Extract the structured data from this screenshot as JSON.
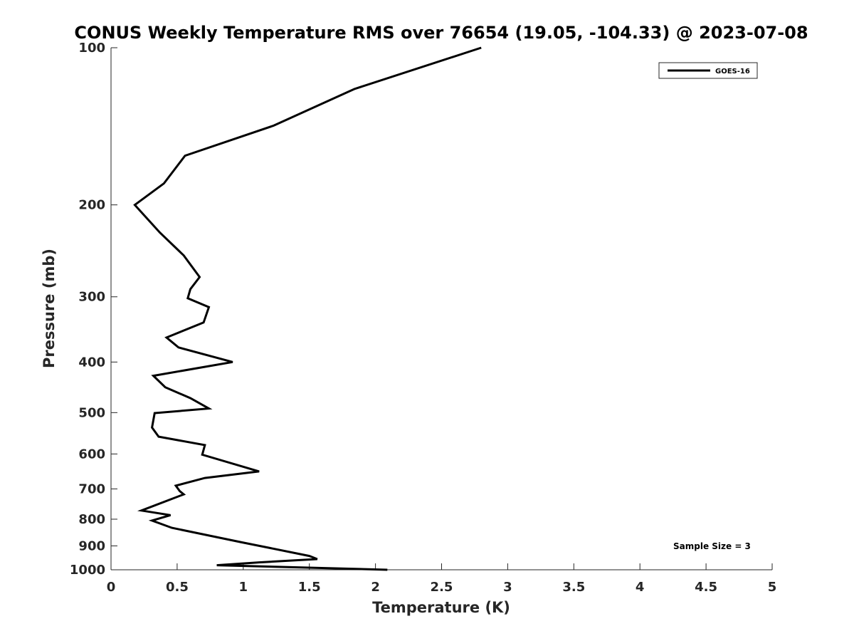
{
  "chart_data": {
    "type": "line",
    "title": "CONUS Weekly Temperature RMS over 76654 (19.05, -104.33) @ 2023-07-08",
    "xlabel": "Temperature (K)",
    "ylabel": "Pressure (mb)",
    "xlim": [
      0,
      5
    ],
    "ylim": [
      100,
      1000
    ],
    "y_scale": "log",
    "y_reversed": true,
    "grid": false,
    "legend_position": "top-right",
    "x_ticks": [
      "0",
      "0.5",
      "1",
      "1.5",
      "2",
      "2.5",
      "3",
      "3.5",
      "4",
      "4.5",
      "5"
    ],
    "y_ticks": [
      "100",
      "200",
      "300",
      "400",
      "500",
      "600",
      "700",
      "800",
      "900",
      "1000"
    ],
    "annotation": "Sample Size = 3",
    "series": [
      {
        "name": "GOES-16",
        "color": "#000000",
        "points": [
          {
            "x": 2.8,
            "y": 100
          },
          {
            "x": 1.84,
            "y": 120
          },
          {
            "x": 1.23,
            "y": 141
          },
          {
            "x": 0.56,
            "y": 161
          },
          {
            "x": 0.4,
            "y": 182
          },
          {
            "x": 0.18,
            "y": 200
          },
          {
            "x": 0.37,
            "y": 226
          },
          {
            "x": 0.55,
            "y": 250
          },
          {
            "x": 0.67,
            "y": 275
          },
          {
            "x": 0.6,
            "y": 290
          },
          {
            "x": 0.58,
            "y": 302
          },
          {
            "x": 0.74,
            "y": 314
          },
          {
            "x": 0.7,
            "y": 336
          },
          {
            "x": 0.42,
            "y": 359
          },
          {
            "x": 0.51,
            "y": 375
          },
          {
            "x": 0.92,
            "y": 400
          },
          {
            "x": 0.32,
            "y": 425
          },
          {
            "x": 0.41,
            "y": 447
          },
          {
            "x": 0.6,
            "y": 469
          },
          {
            "x": 0.74,
            "y": 491
          },
          {
            "x": 0.33,
            "y": 501
          },
          {
            "x": 0.31,
            "y": 534
          },
          {
            "x": 0.36,
            "y": 556
          },
          {
            "x": 0.71,
            "y": 577
          },
          {
            "x": 0.69,
            "y": 602
          },
          {
            "x": 1.12,
            "y": 648
          },
          {
            "x": 0.71,
            "y": 667
          },
          {
            "x": 0.49,
            "y": 690
          },
          {
            "x": 0.52,
            "y": 707
          },
          {
            "x": 0.55,
            "y": 717
          },
          {
            "x": 0.23,
            "y": 770
          },
          {
            "x": 0.45,
            "y": 786
          },
          {
            "x": 0.31,
            "y": 805
          },
          {
            "x": 0.46,
            "y": 831
          },
          {
            "x": 0.98,
            "y": 885
          },
          {
            "x": 1.5,
            "y": 941
          },
          {
            "x": 1.56,
            "y": 954
          },
          {
            "x": 1.12,
            "y": 968
          },
          {
            "x": 0.8,
            "y": 980
          },
          {
            "x": 2.09,
            "y": 1000
          }
        ]
      }
    ]
  }
}
